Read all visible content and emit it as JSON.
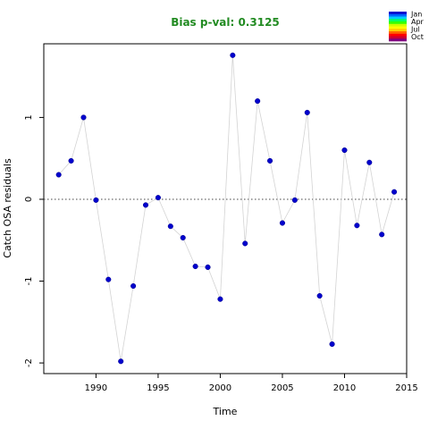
{
  "chart_data": {
    "type": "scatter",
    "title": "Bias p-val: 0.3125",
    "title_color": "#228B22",
    "xlabel": "Time",
    "ylabel": "Catch OSA residuals",
    "xlim": [
      1985.8,
      2015
    ],
    "ylim": [
      -2.13,
      1.9
    ],
    "x_ticks": [
      1990,
      1995,
      2000,
      2005,
      2010,
      2015
    ],
    "y_ticks": [
      -2,
      -1,
      0,
      1
    ],
    "grid": false,
    "reference_line": 0,
    "point_color": "#0000CD",
    "line_color": "#d3d3d3",
    "legend": {
      "placement": "top-right",
      "labels": [
        "Jan",
        "Apr",
        "Jul",
        "Oct"
      ],
      "colors": [
        "#0000CC",
        "#0066FF",
        "#00CCFF",
        "#00FF66",
        "#33FF00",
        "#CCFF00",
        "#FFFF00",
        "#FFCC00",
        "#FF6600",
        "#FF0000",
        "#CC0033",
        "#800080"
      ]
    },
    "x": [
      1987,
      1988,
      1989,
      1990,
      1991,
      1992,
      1993,
      1994,
      1995,
      1996,
      1997,
      1998,
      1999,
      2000,
      2001,
      2002,
      2003,
      2004,
      2005,
      2006,
      2007,
      2008,
      2009,
      2010,
      2011,
      2012,
      2013,
      2014
    ],
    "y": [
      0.3,
      0.47,
      1.0,
      -0.01,
      -0.98,
      -1.98,
      -1.06,
      -0.07,
      0.02,
      -0.33,
      -0.47,
      -0.82,
      -0.83,
      -1.22,
      1.76,
      -0.54,
      1.2,
      0.47,
      -0.29,
      -0.01,
      1.06,
      -1.18,
      -1.77,
      0.6,
      -0.32,
      0.45,
      -0.43,
      0.09
    ]
  }
}
